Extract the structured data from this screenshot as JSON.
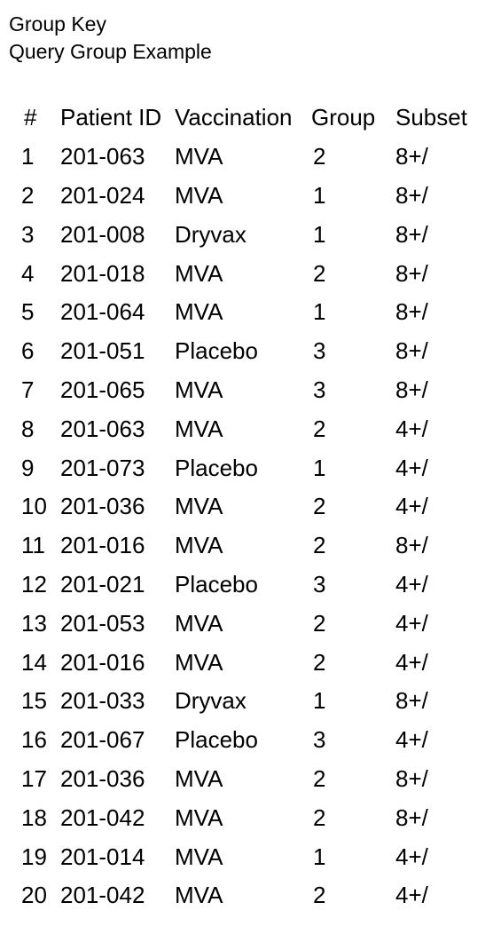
{
  "header": {
    "title": "Group Key",
    "subtitle": "Query Group Example"
  },
  "table": {
    "columns": [
      "#",
      "Patient ID",
      "Vaccination",
      "Group",
      "Subset"
    ],
    "rows": [
      {
        "num": "1",
        "patient_id": "201-063",
        "vaccination": "MVA",
        "group": "2",
        "subset": "8+/"
      },
      {
        "num": "2",
        "patient_id": "201-024",
        "vaccination": "MVA",
        "group": "1",
        "subset": "8+/"
      },
      {
        "num": "3",
        "patient_id": "201-008",
        "vaccination": "Dryvax",
        "group": "1",
        "subset": "8+/"
      },
      {
        "num": "4",
        "patient_id": "201-018",
        "vaccination": "MVA",
        "group": "2",
        "subset": "8+/"
      },
      {
        "num": "5",
        "patient_id": "201-064",
        "vaccination": "MVA",
        "group": "1",
        "subset": "8+/"
      },
      {
        "num": "6",
        "patient_id": "201-051",
        "vaccination": "Placebo",
        "group": "3",
        "subset": "8+/"
      },
      {
        "num": "7",
        "patient_id": "201-065",
        "vaccination": "MVA",
        "group": "3",
        "subset": "8+/"
      },
      {
        "num": "8",
        "patient_id": "201-063",
        "vaccination": "MVA",
        "group": "2",
        "subset": "4+/"
      },
      {
        "num": "9",
        "patient_id": "201-073",
        "vaccination": "Placebo",
        "group": "1",
        "subset": "4+/"
      },
      {
        "num": "10",
        "patient_id": "201-036",
        "vaccination": "MVA",
        "group": "2",
        "subset": "4+/"
      },
      {
        "num": "11",
        "patient_id": "201-016",
        "vaccination": "MVA",
        "group": "2",
        "subset": "8+/"
      },
      {
        "num": "12",
        "patient_id": "201-021",
        "vaccination": "Placebo",
        "group": "3",
        "subset": "4+/"
      },
      {
        "num": "13",
        "patient_id": "201-053",
        "vaccination": "MVA",
        "group": "2",
        "subset": "4+/"
      },
      {
        "num": "14",
        "patient_id": "201-016",
        "vaccination": "MVA",
        "group": "2",
        "subset": "4+/"
      },
      {
        "num": "15",
        "patient_id": "201-033",
        "vaccination": "Dryvax",
        "group": "1",
        "subset": "8+/"
      },
      {
        "num": "16",
        "patient_id": "201-067",
        "vaccination": "Placebo",
        "group": "3",
        "subset": "4+/"
      },
      {
        "num": "17",
        "patient_id": "201-036",
        "vaccination": "MVA",
        "group": "2",
        "subset": "8+/"
      },
      {
        "num": "18",
        "patient_id": "201-042",
        "vaccination": "MVA",
        "group": "2",
        "subset": "8+/"
      },
      {
        "num": "19",
        "patient_id": "201-014",
        "vaccination": "MVA",
        "group": "1",
        "subset": "4+/"
      },
      {
        "num": "20",
        "patient_id": "201-042",
        "vaccination": "MVA",
        "group": "2",
        "subset": "4+/"
      }
    ]
  }
}
